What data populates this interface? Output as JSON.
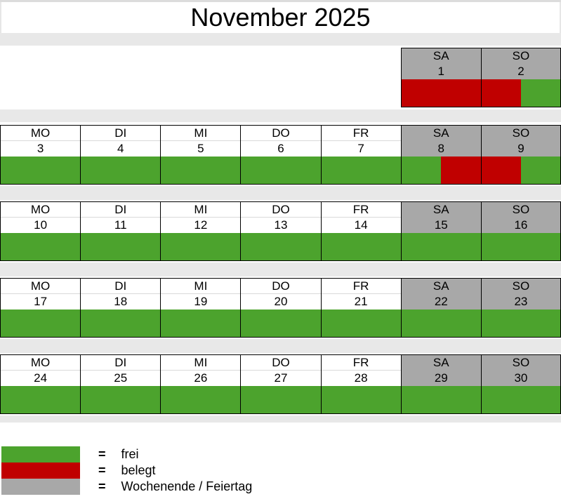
{
  "title": "November 2025",
  "colors": {
    "frei": "#4ca32d",
    "belegt": "#c00000",
    "weekend": "#a8a8a8",
    "band": "#e8e8e8"
  },
  "weeks": [
    {
      "days": [
        {
          "label": "SA",
          "date": "1",
          "type": "weekend",
          "first_half": "belegt",
          "second_half": "belegt"
        },
        {
          "label": "SO",
          "date": "2",
          "type": "weekend",
          "first_half": "belegt",
          "second_half": "frei"
        }
      ]
    },
    {
      "days": [
        {
          "label": "MO",
          "date": "3",
          "type": "weekday",
          "first_half": "frei",
          "second_half": "frei"
        },
        {
          "label": "DI",
          "date": "4",
          "type": "weekday",
          "first_half": "frei",
          "second_half": "frei"
        },
        {
          "label": "MI",
          "date": "5",
          "type": "weekday",
          "first_half": "frei",
          "second_half": "frei"
        },
        {
          "label": "DO",
          "date": "6",
          "type": "weekday",
          "first_half": "frei",
          "second_half": "frei"
        },
        {
          "label": "FR",
          "date": "7",
          "type": "weekday",
          "first_half": "frei",
          "second_half": "frei"
        },
        {
          "label": "SA",
          "date": "8",
          "type": "weekend",
          "first_half": "frei",
          "second_half": "belegt"
        },
        {
          "label": "SO",
          "date": "9",
          "type": "weekend",
          "first_half": "belegt",
          "second_half": "frei"
        }
      ]
    },
    {
      "days": [
        {
          "label": "MO",
          "date": "10",
          "type": "weekday",
          "first_half": "frei",
          "second_half": "frei"
        },
        {
          "label": "DI",
          "date": "11",
          "type": "weekday",
          "first_half": "frei",
          "second_half": "frei"
        },
        {
          "label": "MI",
          "date": "12",
          "type": "weekday",
          "first_half": "frei",
          "second_half": "frei"
        },
        {
          "label": "DO",
          "date": "13",
          "type": "weekday",
          "first_half": "frei",
          "second_half": "frei"
        },
        {
          "label": "FR",
          "date": "14",
          "type": "weekday",
          "first_half": "frei",
          "second_half": "frei"
        },
        {
          "label": "SA",
          "date": "15",
          "type": "weekend",
          "first_half": "frei",
          "second_half": "frei"
        },
        {
          "label": "SO",
          "date": "16",
          "type": "weekend",
          "first_half": "frei",
          "second_half": "frei"
        }
      ]
    },
    {
      "days": [
        {
          "label": "MO",
          "date": "17",
          "type": "weekday",
          "first_half": "frei",
          "second_half": "frei"
        },
        {
          "label": "DI",
          "date": "18",
          "type": "weekday",
          "first_half": "frei",
          "second_half": "frei"
        },
        {
          "label": "MI",
          "date": "19",
          "type": "weekday",
          "first_half": "frei",
          "second_half": "frei"
        },
        {
          "label": "DO",
          "date": "20",
          "type": "weekday",
          "first_half": "frei",
          "second_half": "frei"
        },
        {
          "label": "FR",
          "date": "21",
          "type": "weekday",
          "first_half": "frei",
          "second_half": "frei"
        },
        {
          "label": "SA",
          "date": "22",
          "type": "weekend",
          "first_half": "frei",
          "second_half": "frei"
        },
        {
          "label": "SO",
          "date": "23",
          "type": "weekend",
          "first_half": "frei",
          "second_half": "frei"
        }
      ]
    },
    {
      "days": [
        {
          "label": "MO",
          "date": "24",
          "type": "weekday",
          "first_half": "frei",
          "second_half": "frei"
        },
        {
          "label": "DI",
          "date": "25",
          "type": "weekday",
          "first_half": "frei",
          "second_half": "frei"
        },
        {
          "label": "MI",
          "date": "26",
          "type": "weekday",
          "first_half": "frei",
          "second_half": "frei"
        },
        {
          "label": "DO",
          "date": "27",
          "type": "weekday",
          "first_half": "frei",
          "second_half": "frei"
        },
        {
          "label": "FR",
          "date": "28",
          "type": "weekday",
          "first_half": "frei",
          "second_half": "frei"
        },
        {
          "label": "SA",
          "date": "29",
          "type": "weekend",
          "first_half": "frei",
          "second_half": "frei"
        },
        {
          "label": "SO",
          "date": "30",
          "type": "weekend",
          "first_half": "frei",
          "second_half": "frei"
        }
      ]
    }
  ],
  "legend": [
    {
      "symbol": "=",
      "label": "frei",
      "status": "frei"
    },
    {
      "symbol": "=",
      "label": "belegt",
      "status": "belegt"
    },
    {
      "symbol": "=",
      "label": "Wochenende / Feiertag",
      "status": "wochenende"
    }
  ]
}
